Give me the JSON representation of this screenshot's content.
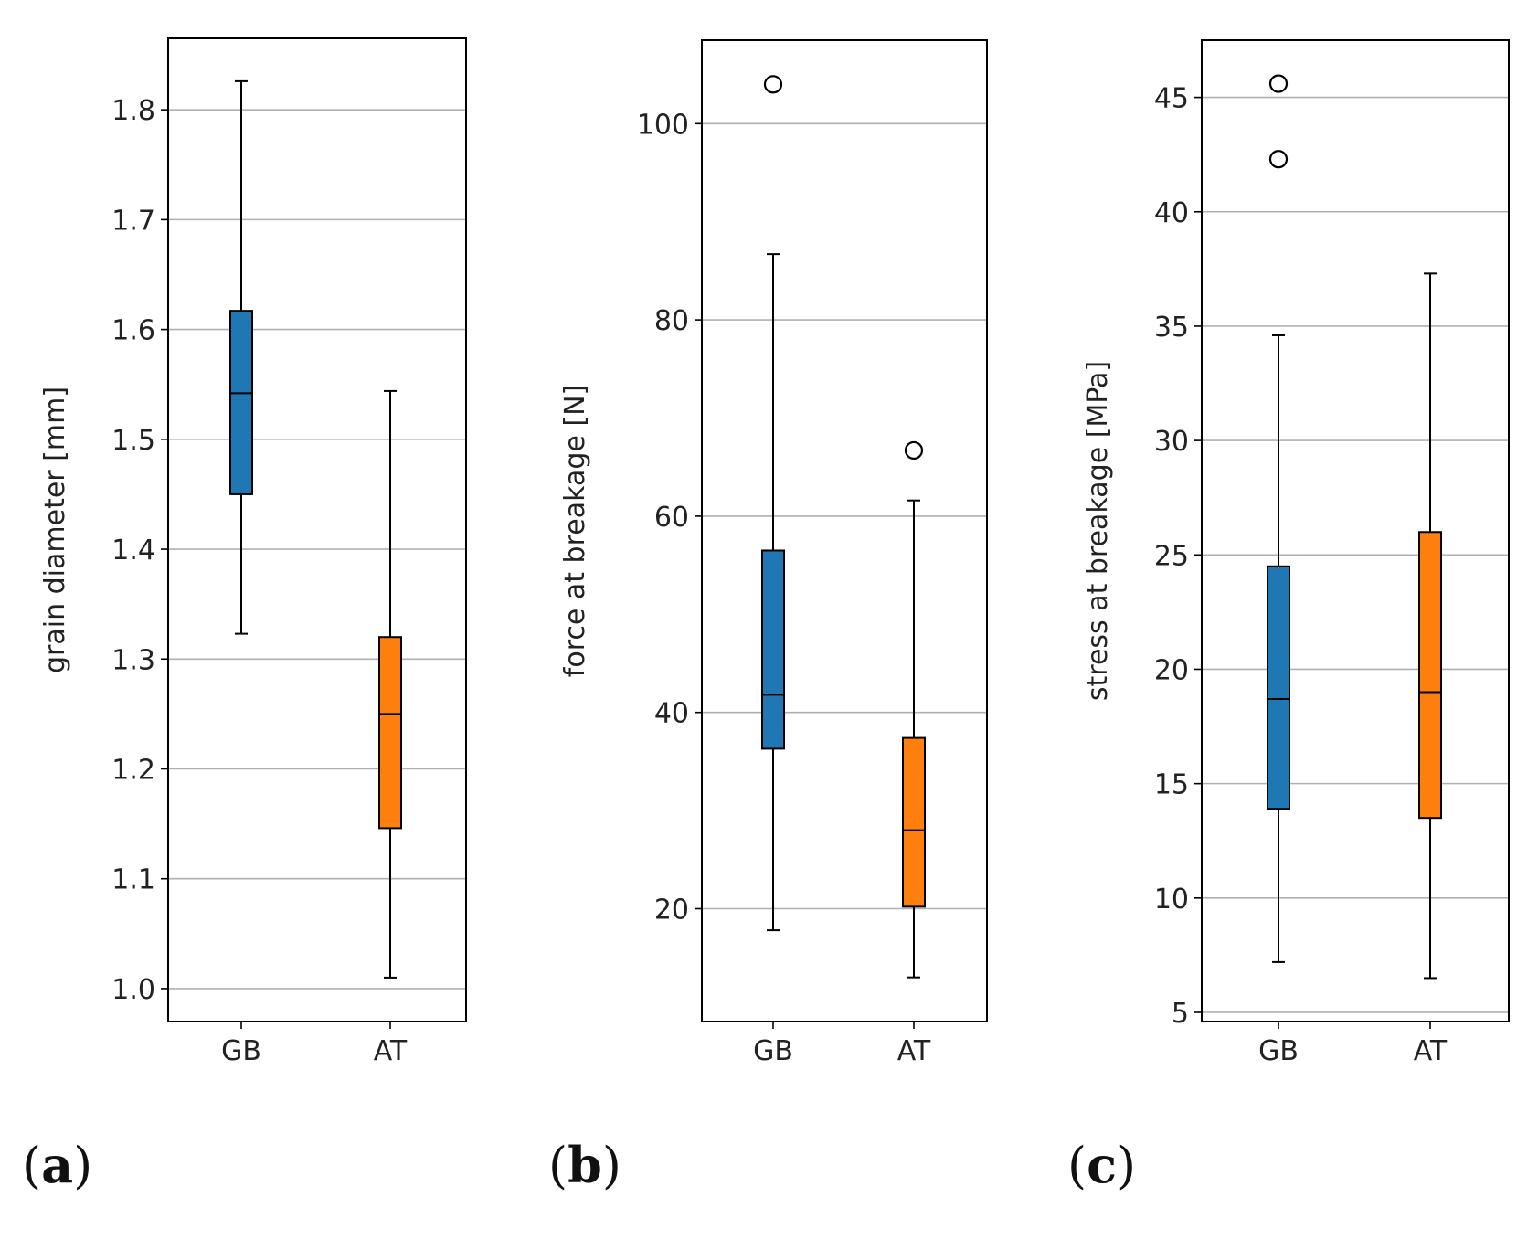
{
  "chart_data": [
    {
      "type": "box",
      "panel_label": "a",
      "ylabel": "grain diameter [mm]",
      "ylim": [
        0.97,
        1.865
      ],
      "yticks": [
        1.0,
        1.1,
        1.2,
        1.3,
        1.4,
        1.5,
        1.6,
        1.7,
        1.8
      ],
      "ytick_labels": [
        "1.0",
        "1.1",
        "1.2",
        "1.3",
        "1.4",
        "1.5",
        "1.6",
        "1.7",
        "1.8"
      ],
      "grid": "y",
      "categories": [
        "GB",
        "AT"
      ],
      "series": [
        {
          "name": "GB",
          "color": "#1f77b4",
          "whisker_low": 1.323,
          "q1": 1.45,
          "median": 1.542,
          "q3": 1.617,
          "whisker_high": 1.826,
          "outliers": []
        },
        {
          "name": "AT",
          "color": "#ff7f0e",
          "whisker_low": 1.01,
          "q1": 1.146,
          "median": 1.25,
          "q3": 1.32,
          "whisker_high": 1.544,
          "outliers": []
        }
      ]
    },
    {
      "type": "box",
      "panel_label": "b",
      "ylabel": "force at breakage [N]",
      "ylim": [
        8.5,
        108.5
      ],
      "yticks": [
        20,
        40,
        60,
        80,
        100
      ],
      "ytick_labels": [
        "20",
        "40",
        "60",
        "80",
        "100"
      ],
      "grid": "y",
      "categories": [
        "GB",
        "AT"
      ],
      "series": [
        {
          "name": "GB",
          "color": "#1f77b4",
          "whisker_low": 17.8,
          "q1": 36.3,
          "median": 41.8,
          "q3": 56.5,
          "whisker_high": 86.7,
          "outliers": [
            104.0
          ]
        },
        {
          "name": "AT",
          "color": "#ff7f0e",
          "whisker_low": 13.0,
          "q1": 20.2,
          "median": 28.0,
          "q3": 37.4,
          "whisker_high": 61.6,
          "outliers": [
            66.7
          ]
        }
      ]
    },
    {
      "type": "box",
      "panel_label": "c",
      "ylabel": "stress at breakage [MPa]",
      "ylim": [
        4.6,
        47.5
      ],
      "yticks": [
        5,
        10,
        15,
        20,
        25,
        30,
        35,
        40,
        45
      ],
      "ytick_labels": [
        "5",
        "10",
        "15",
        "20",
        "25",
        "30",
        "35",
        "40",
        "45"
      ],
      "grid": "y",
      "categories": [
        "GB",
        "AT"
      ],
      "series": [
        {
          "name": "GB",
          "color": "#1f77b4",
          "whisker_low": 7.2,
          "q1": 13.9,
          "median": 18.7,
          "q3": 24.5,
          "whisker_high": 34.6,
          "outliers": [
            45.6,
            42.3
          ]
        },
        {
          "name": "AT",
          "color": "#ff7f0e",
          "whisker_low": 6.5,
          "q1": 13.5,
          "median": 19.0,
          "q3": 26.0,
          "whisker_high": 37.3,
          "outliers": []
        }
      ]
    }
  ]
}
